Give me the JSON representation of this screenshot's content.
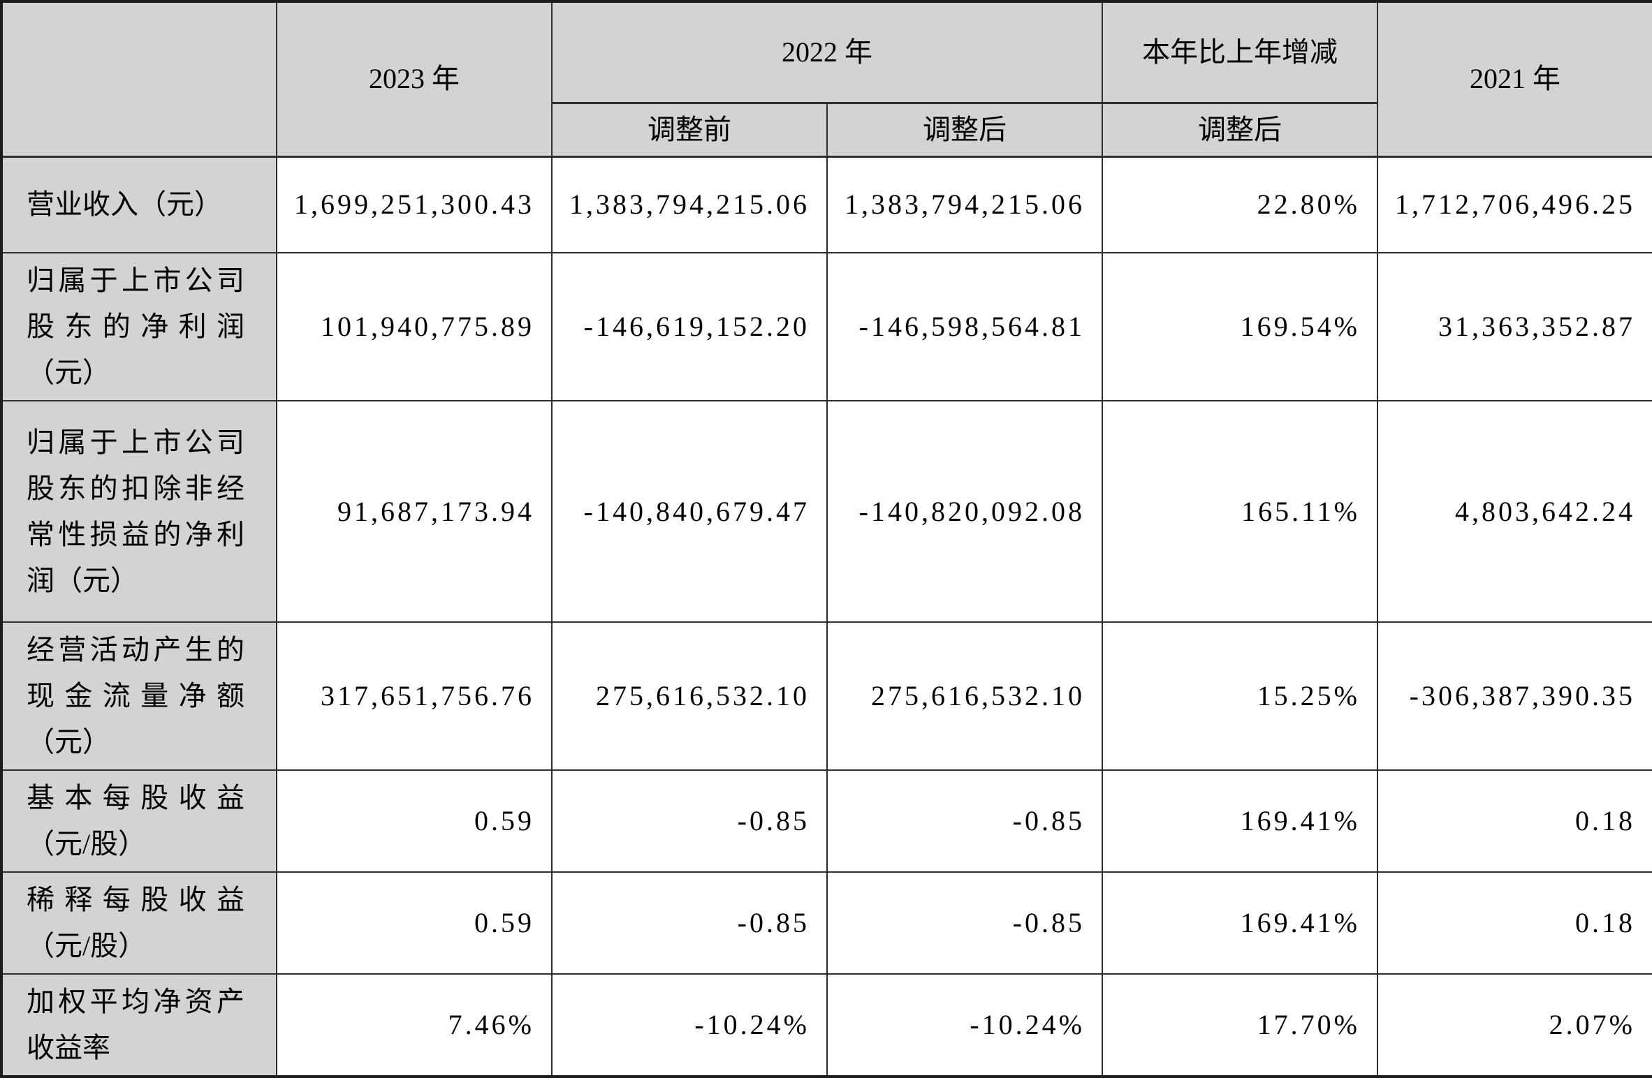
{
  "header": {
    "year_2023": "2023 年",
    "year_2022": "2022 年",
    "change_col": "本年比上年增减",
    "year_2021": "2021 年",
    "sub_2022_before": "调整前",
    "sub_2022_after": "调整后",
    "sub_change_after": "调整后"
  },
  "rows": [
    {
      "label": "营业收入（元）",
      "y2023": "1,699,251,300.43",
      "y2022_before": "1,383,794,215.06",
      "y2022_after": "1,383,794,215.06",
      "change": "22.80%",
      "y2021": "1,712,706,496.25"
    },
    {
      "label": "归属于上市公司股东的净利润（元）",
      "y2023": "101,940,775.89",
      "y2022_before": "-146,619,152.20",
      "y2022_after": "-146,598,564.81",
      "change": "169.54%",
      "y2021": "31,363,352.87"
    },
    {
      "label": "归属于上市公司股东的扣除非经常性损益的净利润（元）",
      "y2023": "91,687,173.94",
      "y2022_before": "-140,840,679.47",
      "y2022_after": "-140,820,092.08",
      "change": "165.11%",
      "y2021": "4,803,642.24"
    },
    {
      "label": "经营活动产生的现金流量净额（元）",
      "y2023": "317,651,756.76",
      "y2022_before": "275,616,532.10",
      "y2022_after": "275,616,532.10",
      "change": "15.25%",
      "y2021": "-306,387,390.35"
    },
    {
      "label": "基本每股收益（元/股）",
      "y2023": "0.59",
      "y2022_before": "-0.85",
      "y2022_after": "-0.85",
      "change": "169.41%",
      "y2021": "0.18"
    },
    {
      "label": "稀释每股收益（元/股）",
      "y2023": "0.59",
      "y2022_before": "-0.85",
      "y2022_after": "-0.85",
      "change": "169.41%",
      "y2021": "0.18"
    },
    {
      "label": "加权平均净资产收益率",
      "y2023": "7.46%",
      "y2022_before": "-10.24%",
      "y2022_after": "-10.24%",
      "change": "17.70%",
      "y2021": "2.07%"
    }
  ],
  "colors": {
    "header_bg": "#d3d3d3",
    "cell_bg": "#ffffff",
    "border": "#2e2e2e",
    "text": "#000000"
  }
}
